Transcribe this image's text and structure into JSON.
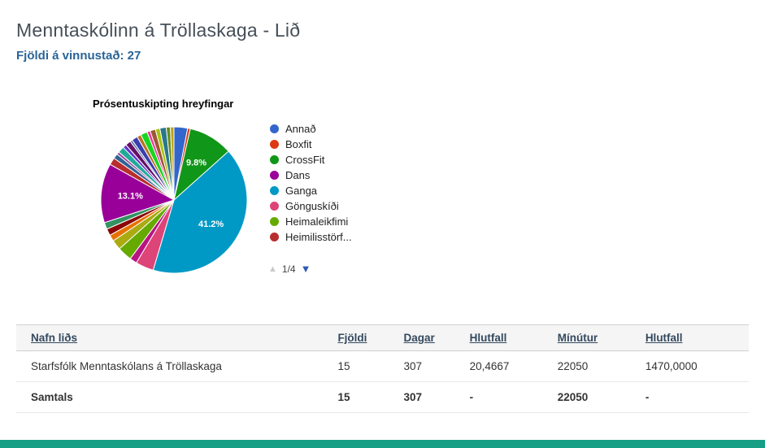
{
  "page": {
    "title": "Menntaskólinn á Tröllaskaga - Lið",
    "subtitle": "Fjöldi á vinnustað: 27"
  },
  "colors": {
    "footer_bar": "#169f85",
    "subtitle_blue": "#2a6496",
    "header_link": "#34495e"
  },
  "chart_data": {
    "type": "pie",
    "title": "Prósentuskipting hreyfingar",
    "legend_position": "right",
    "pagination": {
      "prev_icon": "▲",
      "label": "1/4",
      "next_icon": "▼"
    },
    "visible_legend": [
      {
        "label": "Annað",
        "color": "#3366cc"
      },
      {
        "label": "Boxfit",
        "color": "#dc3912"
      },
      {
        "label": "CrossFit",
        "color": "#109618"
      },
      {
        "label": "Dans",
        "color": "#990099"
      },
      {
        "label": "Ganga",
        "color": "#0099c6"
      },
      {
        "label": "Gönguskíði",
        "color": "#dd4477"
      },
      {
        "label": "Heimaleikfimi",
        "color": "#66aa00"
      },
      {
        "label": "Heimilisstörf...",
        "color": "#b82e2e"
      }
    ],
    "labeled_values": {
      "CrossFit": 9.8,
      "Ganga": 41.2,
      "Dans": 13.1
    },
    "slices": [
      {
        "label": "Annað",
        "color": "#3366cc",
        "value": 3.0
      },
      {
        "label": "Boxfit",
        "color": "#dc3912",
        "value": 0.6
      },
      {
        "label": "CrossFit",
        "color": "#109618",
        "value": 9.8,
        "pct_label": "9.8%"
      },
      {
        "label": "Ganga",
        "color": "#0099c6",
        "value": 41.2,
        "pct_label": "41.2%"
      },
      {
        "label": "Gönguskíði",
        "color": "#dd4477",
        "value": 4.0
      },
      {
        "label": "",
        "color": "#b91383",
        "value": 1.6
      },
      {
        "label": "Heimaleikfimi",
        "color": "#66aa00",
        "value": 3.2
      },
      {
        "label": "",
        "color": "#aaaa11",
        "value": 2.2
      },
      {
        "label": "",
        "color": "#e67300",
        "value": 1.4
      },
      {
        "label": "",
        "color": "#8b0707",
        "value": 1.5
      },
      {
        "label": "",
        "color": "#329262",
        "value": 1.5
      },
      {
        "label": "Dans",
        "color": "#990099",
        "value": 13.1,
        "pct_label": "13.1%"
      },
      {
        "label": "Heimilisstörf...",
        "color": "#b82e2e",
        "value": 1.6
      },
      {
        "label": "",
        "color": "#316395",
        "value": 1.1
      },
      {
        "label": "",
        "color": "#994499",
        "value": 0.6
      },
      {
        "label": "",
        "color": "#22aa99",
        "value": 1.4
      },
      {
        "label": "",
        "color": "#6633cc",
        "value": 0.8
      },
      {
        "label": "",
        "color": "#651067",
        "value": 1.2
      },
      {
        "label": "",
        "color": "#5574a6",
        "value": 0.5
      },
      {
        "label": "",
        "color": "#3b3eac",
        "value": 1.3
      },
      {
        "label": "",
        "color": "#b77322",
        "value": 0.9
      },
      {
        "label": "",
        "color": "#16d620",
        "value": 1.5
      },
      {
        "label": "",
        "color": "#f4359e",
        "value": 0.7
      },
      {
        "label": "",
        "color": "#9c5935",
        "value": 1.2
      },
      {
        "label": "",
        "color": "#a9c413",
        "value": 1.0
      },
      {
        "label": "",
        "color": "#2a778d",
        "value": 1.4
      },
      {
        "label": "",
        "color": "#668d1c",
        "value": 0.9
      },
      {
        "label": "",
        "color": "#bea413",
        "value": 0.8
      }
    ]
  },
  "table": {
    "headers": [
      "Nafn liðs",
      "Fjöldi",
      "Dagar",
      "Hlutfall",
      "Mínútur",
      "Hlutfall"
    ],
    "rows": [
      {
        "cells": [
          "Starfsfólk Menntaskólans á Tröllaskaga",
          "15",
          "307",
          "20,4667",
          "22050",
          "1470,0000"
        ],
        "bold": false
      },
      {
        "cells": [
          "Samtals",
          "15",
          "307",
          "-",
          "22050",
          "-"
        ],
        "bold": true
      }
    ]
  }
}
